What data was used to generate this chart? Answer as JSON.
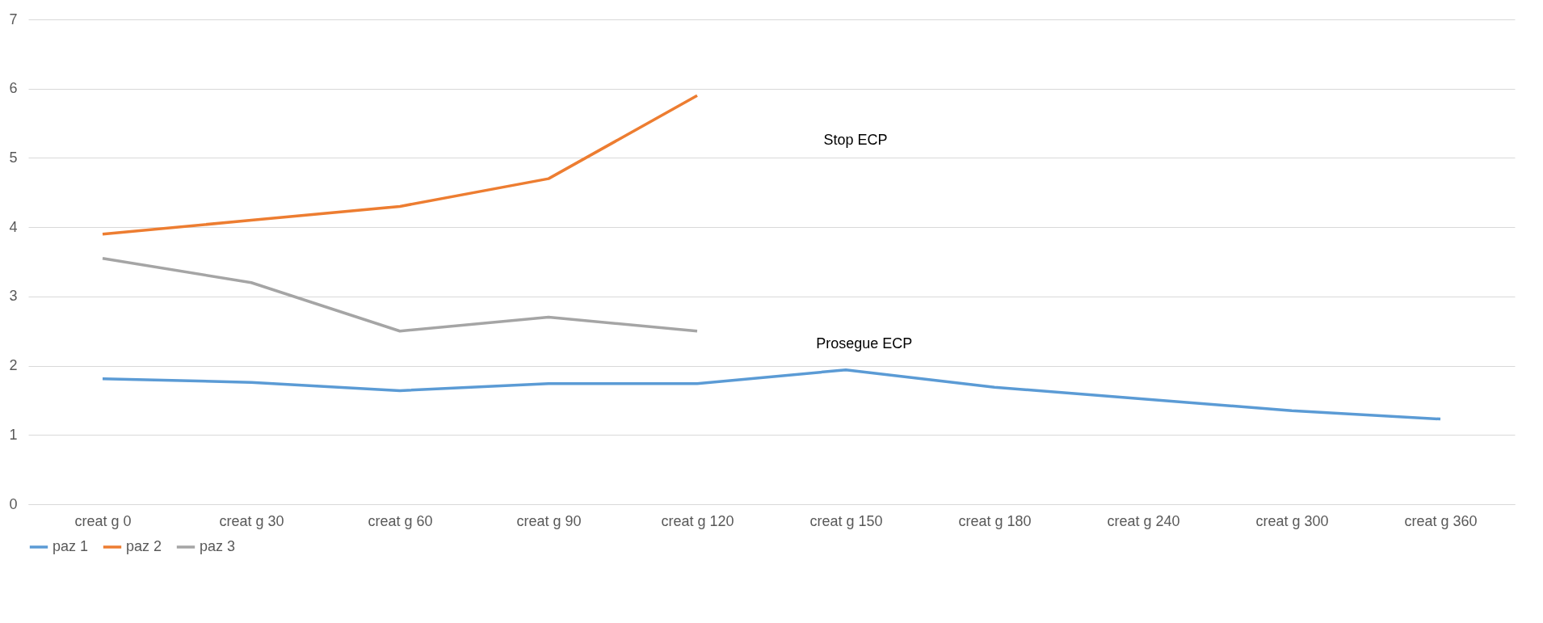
{
  "chart_data": {
    "type": "line",
    "categories": [
      "creat  g 0",
      "creat g 30",
      "creat g 60",
      "creat  g 90",
      "creat g 120",
      "creat g 150",
      "creat g 180",
      "creat g  240",
      "creat g 300",
      "creat g 360"
    ],
    "series": [
      {
        "name": "paz 1",
        "color": "#5b9bd5",
        "values": [
          1.81,
          1.76,
          1.64,
          1.74,
          1.74,
          1.94,
          1.69,
          1.52,
          1.35,
          1.23
        ]
      },
      {
        "name": "paz 2",
        "color": "#ed7d31",
        "values": [
          3.9,
          4.1,
          4.3,
          4.7,
          5.9,
          null,
          null,
          null,
          null,
          null
        ]
      },
      {
        "name": "paz 3",
        "color": "#a5a5a5",
        "values": [
          3.55,
          3.2,
          2.5,
          2.7,
          2.5,
          null,
          null,
          null,
          null,
          null
        ]
      }
    ],
    "ylim": [
      0,
      7
    ],
    "yticks": [
      0,
      1,
      2,
      3,
      4,
      5,
      6,
      7
    ],
    "grid": "y",
    "legend": "bottom",
    "annotations": [
      "Stop ECP",
      "Prosegue ECP"
    ]
  }
}
